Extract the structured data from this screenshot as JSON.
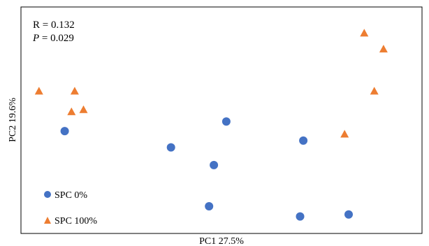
{
  "chart_data": {
    "type": "scatter",
    "title": "",
    "xlabel": "PC1 27.5%",
    "ylabel": "PC2 19.6%",
    "xlim": [
      0,
      100
    ],
    "ylim": [
      0,
      100
    ],
    "grid": false,
    "legend_position": "bottom-left",
    "stats": {
      "r_label": "R = 0.132",
      "p_symbol": "P",
      "p_value": " = 0.029"
    },
    "series": [
      {
        "name": "SPC 0%",
        "marker": "circle",
        "color": "#4472C4",
        "points": [
          {
            "x": 10.9,
            "y": 45.2
          },
          {
            "x": 37.4,
            "y": 38.0
          },
          {
            "x": 51.2,
            "y": 49.4
          },
          {
            "x": 48.1,
            "y": 30.2
          },
          {
            "x": 46.9,
            "y": 12.0
          },
          {
            "x": 70.4,
            "y": 41.0
          },
          {
            "x": 69.6,
            "y": 7.5
          },
          {
            "x": 81.7,
            "y": 8.4
          }
        ]
      },
      {
        "name": "SPC 100%",
        "marker": "triangle",
        "color": "#ED7D31",
        "points": [
          {
            "x": 4.5,
            "y": 62.7
          },
          {
            "x": 12.6,
            "y": 53.6
          },
          {
            "x": 13.4,
            "y": 62.7
          },
          {
            "x": 15.6,
            "y": 54.5
          },
          {
            "x": 80.7,
            "y": 43.7
          },
          {
            "x": 85.6,
            "y": 88.3
          },
          {
            "x": 88.1,
            "y": 62.7
          },
          {
            "x": 90.4,
            "y": 81.3
          }
        ]
      }
    ]
  }
}
